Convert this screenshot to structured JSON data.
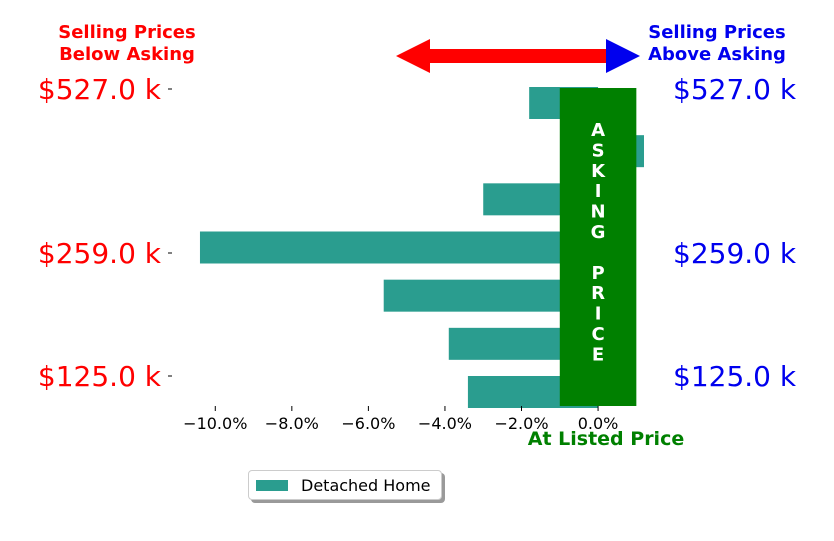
{
  "chart_data": {
    "type": "bar",
    "orientation": "horizontal",
    "categories": [
      "$125.0 k",
      "",
      "",
      "$259.0 k",
      "",
      "",
      "$527.0 k"
    ],
    "series": [
      {
        "name": "Detached Home",
        "values": [
          -3.4,
          -3.9,
          -5.6,
          -10.4,
          -3.0,
          1.2,
          -1.8
        ]
      }
    ],
    "xlim": [
      -11.0,
      1.2
    ],
    "xticks": [
      -10.0,
      -8.0,
      -6.0,
      -4.0,
      -2.0,
      0.0
    ],
    "xtick_labels": [
      "−10.0%",
      "−8.0%",
      "−6.0%",
      "−4.0%",
      "−2.0%",
      "0.0%"
    ],
    "ytick_labels_left": [
      "$125.0 k",
      "$259.0 k",
      "$527.0 k"
    ],
    "ytick_labels_right": [
      "$125.0 k",
      "$259.0 k",
      "$527.0 k"
    ],
    "annotations": {
      "below_asking": [
        "Selling Prices",
        "Below Asking"
      ],
      "above_asking": [
        "Selling Prices",
        "Above Asking"
      ],
      "asking_price_letters": [
        "A",
        "S",
        "K",
        "I",
        "N",
        "G",
        "",
        "P",
        "R",
        "I",
        "C",
        "E"
      ],
      "at_listed_price": "At Listed Price"
    },
    "asking_band": [
      -1.0,
      1.0
    ],
    "legend": {
      "placement": "bottom-center",
      "labels": [
        "Detached Home"
      ]
    },
    "grid": false,
    "colors": {
      "bar": "#2a9d8f",
      "asking_band": "#008000",
      "below": "#ff0000",
      "above": "#0000ee",
      "at_listed": "#008000"
    }
  }
}
